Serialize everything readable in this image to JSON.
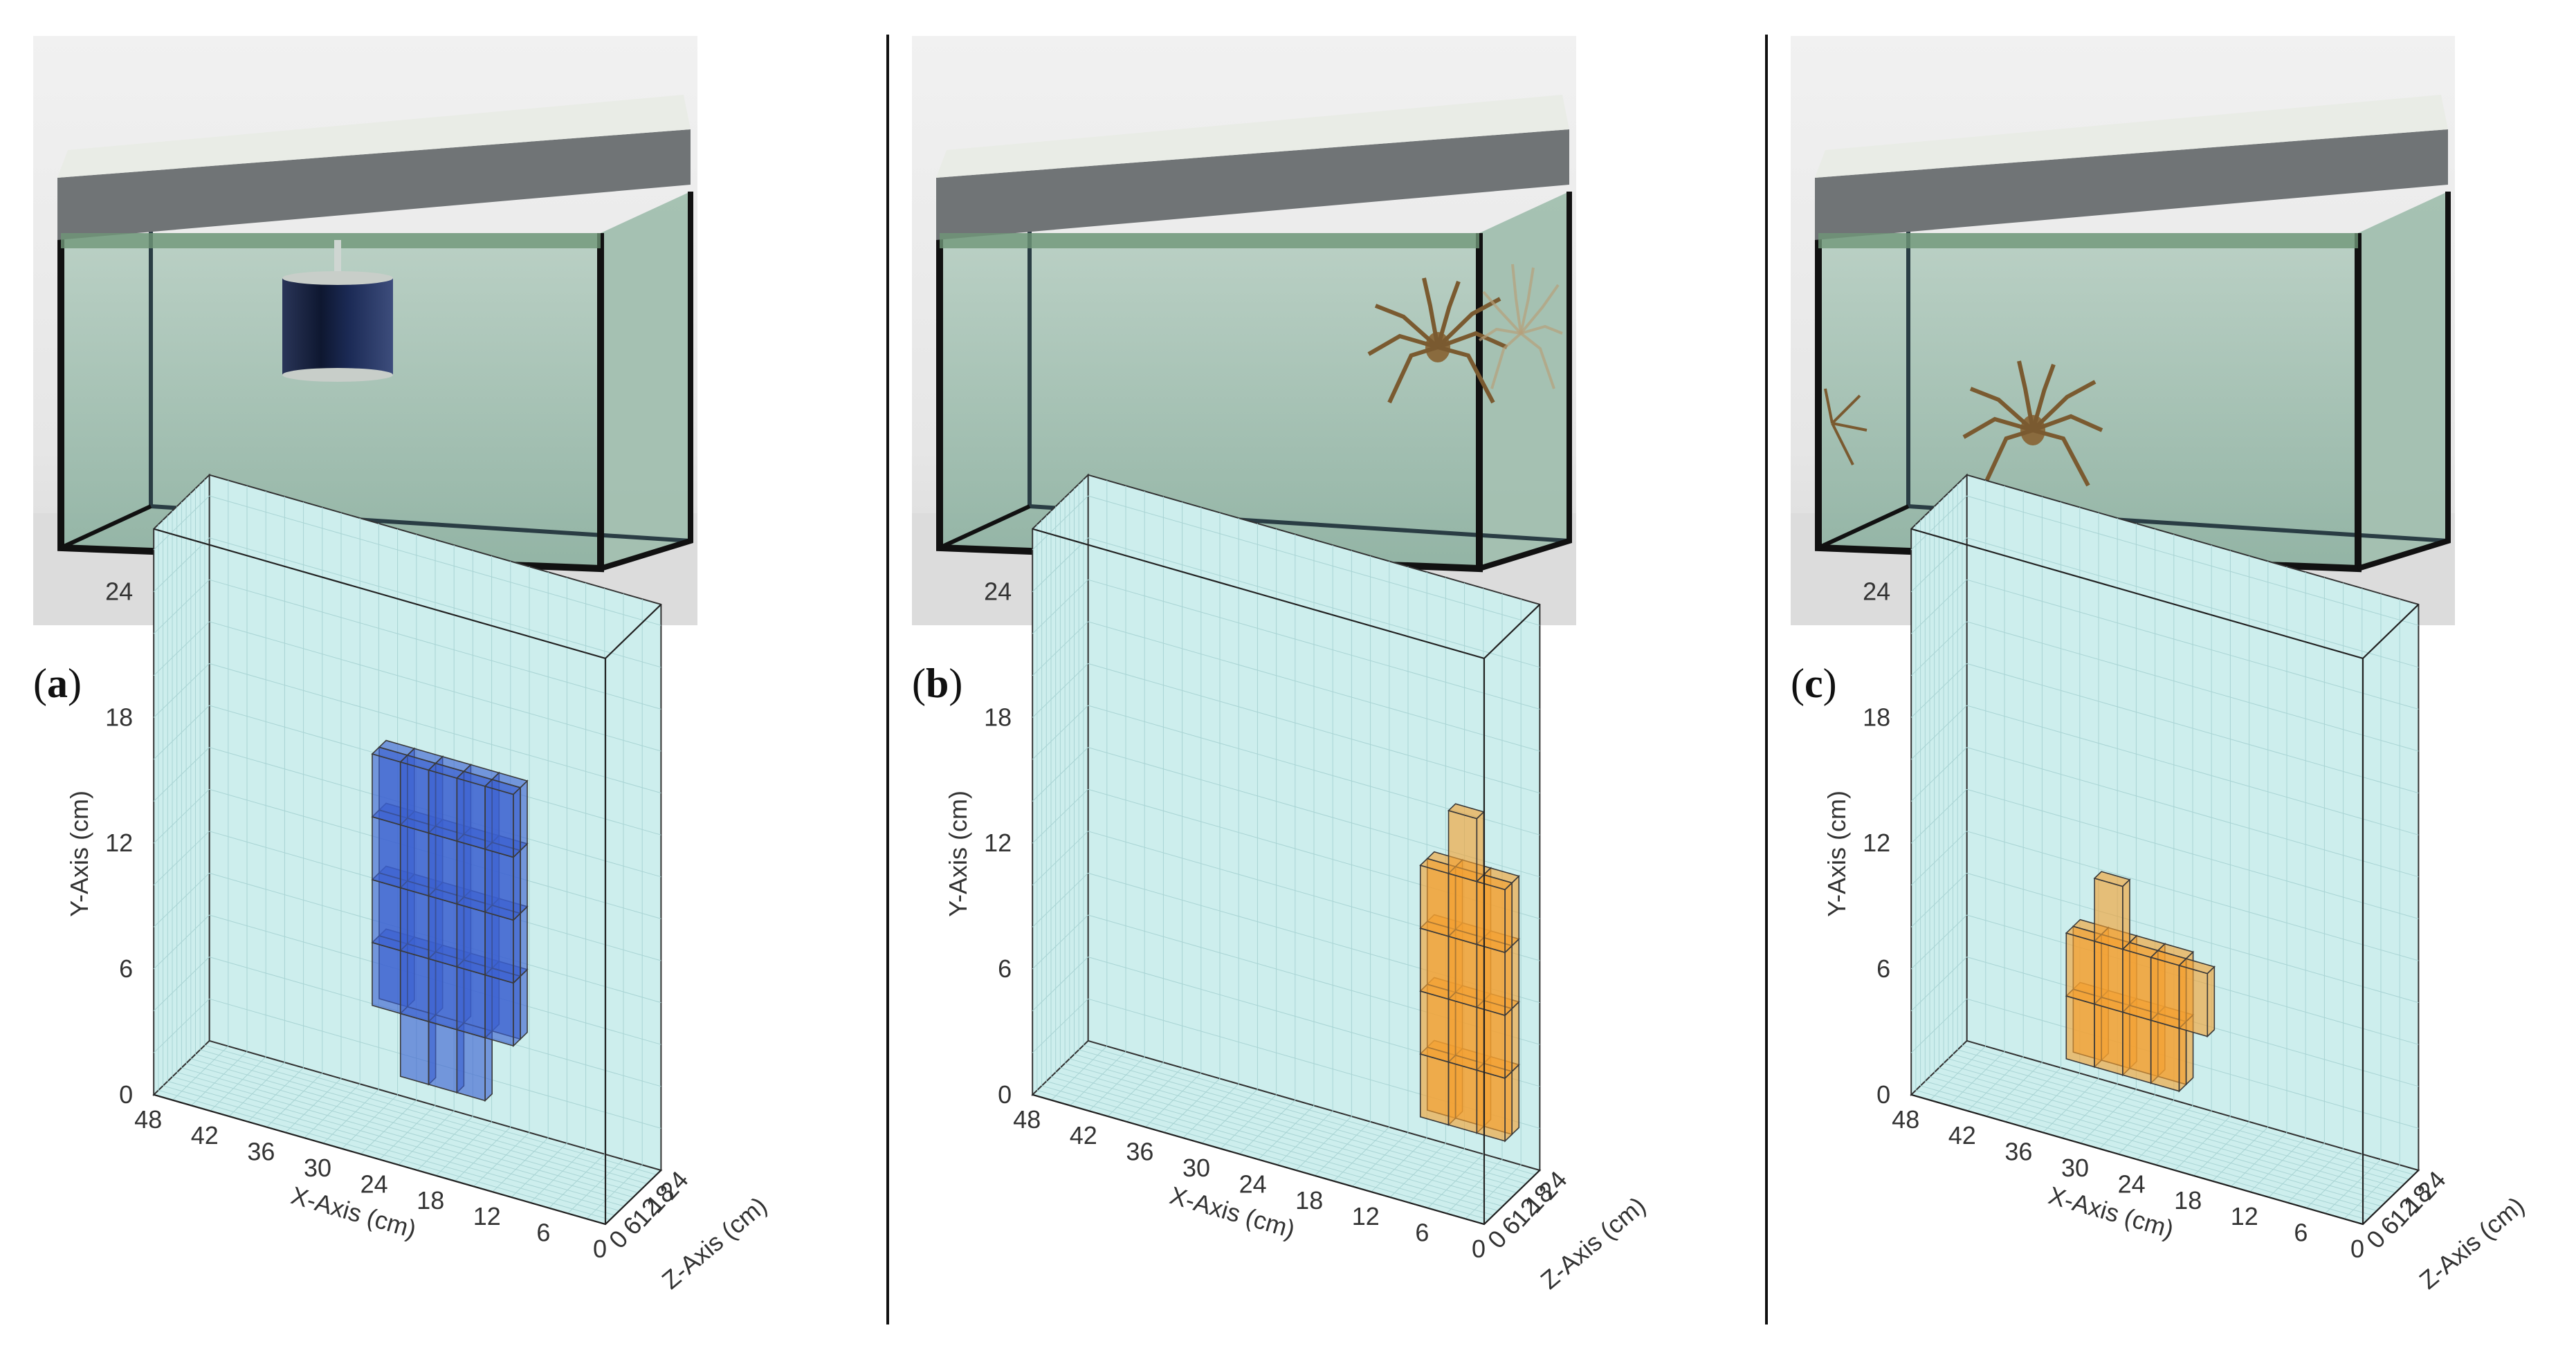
{
  "figure": {
    "panels": [
      {
        "id": "a",
        "label_open": "(",
        "label_letter": "a",
        "label_close": ")",
        "photo_alt": "tank-with-cylinder-target",
        "object": "cylinder"
      },
      {
        "id": "b",
        "label_open": "(",
        "label_letter": "b",
        "label_close": ")",
        "photo_alt": "tank-with-spider-crab-near-right",
        "object": "crab-right"
      },
      {
        "id": "c",
        "label_open": "(",
        "label_letter": "c",
        "label_close": ")",
        "photo_alt": "tank-with-spider-crab-bottom",
        "object": "crab-bottom"
      }
    ]
  },
  "axes": {
    "xlabel": "X-Axis (cm)",
    "ylabel": "Y-Axis (cm)",
    "zlabel": "Z-Axis (cm)",
    "x_ticks": [
      "48",
      "42",
      "36",
      "30",
      "24",
      "18",
      "12",
      "6",
      "0"
    ],
    "y_ticks": [
      "0",
      "6",
      "12",
      "18",
      "24"
    ],
    "z_ticks": [
      "0",
      "6",
      "12",
      "18",
      "24"
    ],
    "xlim": [
      0,
      48
    ],
    "ylim": [
      0,
      27
    ],
    "zlim": [
      0,
      24
    ]
  },
  "chart_data": [
    {
      "type": "voxel3d",
      "panel": "a",
      "color": "#3a5fd0",
      "voxel_size_cm": 3,
      "voxels_cm": [
        {
          "x": [
            12,
            27
          ],
          "y": [
            6,
            18
          ],
          "z": [
            9,
            15
          ]
        },
        {
          "x": [
            15,
            24
          ],
          "y": [
            3,
            6
          ],
          "z": [
            9,
            12
          ]
        }
      ]
    },
    {
      "type": "voxel3d",
      "panel": "b",
      "color": "#f4a030",
      "voxel_size_cm": 3,
      "voxels_cm": [
        {
          "x": [
            0,
            9
          ],
          "y": [
            3,
            15
          ],
          "z": [
            9,
            15
          ]
        },
        {
          "x": [
            3,
            6
          ],
          "y": [
            15,
            18
          ],
          "z": [
            9,
            12
          ]
        }
      ]
    },
    {
      "type": "voxel3d",
      "panel": "c",
      "color": "#f4a030",
      "voxel_size_cm": 3,
      "voxels_cm": [
        {
          "x": [
            21,
            33
          ],
          "y": [
            3,
            9
          ],
          "z": [
            6,
            12
          ]
        },
        {
          "x": [
            27,
            30
          ],
          "y": [
            9,
            12
          ],
          "z": [
            6,
            9
          ]
        },
        {
          "x": [
            18,
            21
          ],
          "y": [
            6,
            9
          ],
          "z": [
            6,
            9
          ]
        }
      ]
    }
  ]
}
